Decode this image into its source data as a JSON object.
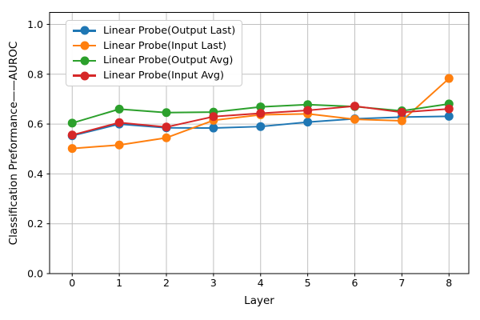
{
  "chart_data": {
    "type": "line",
    "title": "",
    "xlabel": "Layer",
    "ylabel": "Classification Preformance——AUROC",
    "grid": true,
    "legend_position": "upper left",
    "xlim": [
      -0.48,
      8.42
    ],
    "ylim": [
      0,
      1.048
    ],
    "xticks": {
      "values": [
        0,
        1,
        2,
        3,
        4,
        5,
        6,
        7,
        8
      ],
      "labels": [
        "0",
        "1",
        "2",
        "3",
        "4",
        "5",
        "6",
        "7",
        "8"
      ]
    },
    "yticks": {
      "values": [
        0.0,
        0.2,
        0.4,
        0.6,
        0.8,
        1.0
      ],
      "labels": [
        "0.0",
        "0.2",
        "0.4",
        "0.6",
        "0.8",
        "1.0"
      ]
    },
    "x": [
      0,
      1,
      2,
      3,
      4,
      5,
      6,
      7,
      8
    ],
    "series": [
      {
        "key": "output-last",
        "label": "Linear Probe(Output Last)",
        "color": "#1f77b4",
        "values": [
          0.553,
          0.6,
          0.585,
          0.584,
          0.59,
          0.608,
          0.621,
          0.628,
          0.631
        ]
      },
      {
        "key": "input-last",
        "label": "Linear Probe(Input Last)",
        "color": "#ff7f0e",
        "values": [
          0.502,
          0.516,
          0.545,
          0.615,
          0.637,
          0.641,
          0.619,
          0.613,
          0.783
        ]
      },
      {
        "key": "output-avg",
        "label": "Linear Probe(Output Avg)",
        "color": "#2ca02c",
        "values": [
          0.604,
          0.66,
          0.646,
          0.648,
          0.669,
          0.678,
          0.67,
          0.653,
          0.681
        ]
      },
      {
        "key": "input-avg",
        "label": "Linear Probe(Input Avg)",
        "color": "#d62728",
        "values": [
          0.556,
          0.606,
          0.588,
          0.63,
          0.643,
          0.655,
          0.672,
          0.647,
          0.661
        ]
      }
    ],
    "style": {
      "grid_color": "#c0c0c0",
      "spine_color": "#000000",
      "tick_label_color": "#000000",
      "marker_radius": 5.5,
      "line_width": 2
    }
  }
}
